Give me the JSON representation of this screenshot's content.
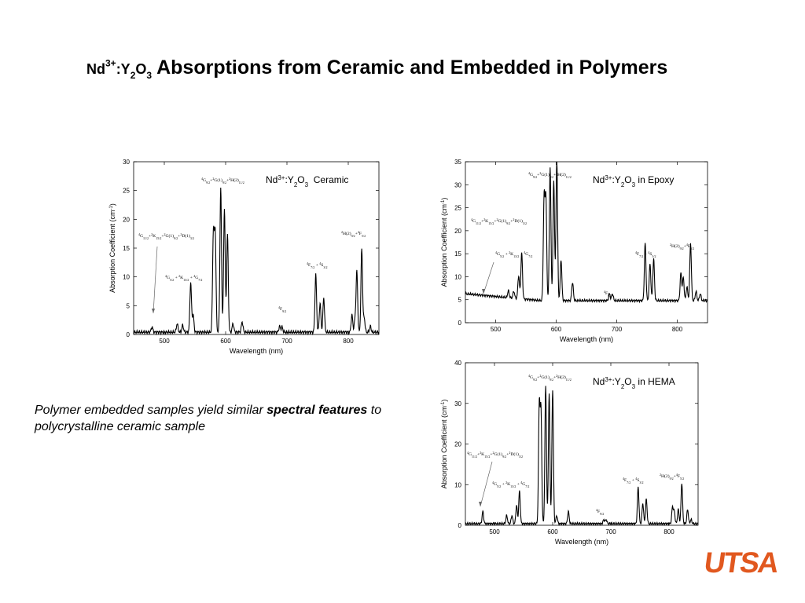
{
  "title": {
    "pre": "Nd",
    "sup": "3+",
    "mid1": ":Y",
    "sub1": "2",
    "mid2": "O",
    "sub2": "3",
    "rest": " Absorptions from Ceramic and Embedded in Polymers"
  },
  "caption": {
    "part1": "Polymer embedded samples yield similar ",
    "bold1": "spectral",
    "bold2": "features",
    "part2": " to polycrystalline ceramic sample"
  },
  "logo": "UTSA",
  "chart_data": [
    {
      "type": "line",
      "title": "Nd3+:Y2O3  Ceramic",
      "xlabel": "Wavelength (nm)",
      "ylabel": "Absorption Coefficient (cm-1)",
      "xlim": [
        450,
        850
      ],
      "ylim": [
        0,
        30
      ],
      "xticks": [
        500,
        600,
        700,
        800
      ],
      "yticks": [
        0,
        5,
        10,
        15,
        20,
        25,
        30
      ],
      "baseline": 0.4,
      "peaks": [
        [
          480,
          0.9
        ],
        [
          521,
          1.5
        ],
        [
          530,
          1.2
        ],
        [
          543,
          8.6
        ],
        [
          547,
          3
        ],
        [
          580,
          17
        ],
        [
          583,
          17
        ],
        [
          592,
          25
        ],
        [
          598,
          21.5
        ],
        [
          603,
          17
        ],
        [
          612,
          1.5
        ],
        [
          627,
          1.8
        ],
        [
          688,
          1
        ],
        [
          692,
          0.9
        ],
        [
          747,
          10
        ],
        [
          754,
          5
        ],
        [
          760,
          6
        ],
        [
          806,
          3
        ],
        [
          811,
          2
        ],
        [
          814,
          10.5
        ],
        [
          822,
          14.5
        ],
        [
          826,
          2.5
        ],
        [
          836,
          1
        ]
      ],
      "annotations": [
        "4G9/2+2G(1)9/2+2H(2)11/2",
        "4G11/2+2K15/2+2G(1)9/2+2D(1)3/2",
        "4G5/2+2K13/2+4G7/2",
        "4F9/2",
        "4F7/2+4S3/2",
        "2H(2)9/2+4F5/2"
      ]
    },
    {
      "type": "line",
      "title": "Nd3+:Y2O3 in Epoxy",
      "xlabel": "Wavelength (nm)",
      "ylabel": "Absorption Coefficient (cm-1)",
      "xlim": [
        450,
        850
      ],
      "ylim": [
        0,
        35
      ],
      "xticks": [
        500,
        600,
        700,
        800
      ],
      "yticks": [
        0,
        5,
        10,
        15,
        20,
        25,
        30,
        35
      ],
      "baseline": 4.8,
      "peaks": [
        [
          521,
          1.5
        ],
        [
          530,
          1.5
        ],
        [
          538,
          5
        ],
        [
          543,
          10
        ],
        [
          580,
          22
        ],
        [
          583,
          22
        ],
        [
          590,
          29
        ],
        [
          596,
          26
        ],
        [
          601,
          31
        ],
        [
          608,
          9
        ],
        [
          627,
          4
        ],
        [
          688,
          1.5
        ],
        [
          693,
          1.5
        ],
        [
          747,
          12.5
        ],
        [
          755,
          8
        ],
        [
          761,
          9
        ],
        [
          806,
          6
        ],
        [
          810,
          5
        ],
        [
          816,
          3
        ],
        [
          822,
          12.5
        ],
        [
          831,
          2
        ],
        [
          838,
          1.5
        ]
      ],
      "annotations": [
        "4G9/2+2G(1)9/2+2H(2)11/2",
        "4G11/2+2K15/2+2G(1)9/2+2D(1)3/2",
        "4G5/2+2K13/2+4G7/2",
        "4F9/2",
        "4F7/2+4S3/2",
        "2H(2)9/2+4F5/2"
      ]
    },
    {
      "type": "line",
      "title": "Nd3+:Y2O3 in HEMA",
      "xlabel": "Wavelength (nm)",
      "ylabel": "Absorption Coefficient (cm-1)",
      "xlim": [
        450,
        850
      ],
      "ylim": [
        0,
        40
      ],
      "xticks": [
        500,
        600,
        700,
        800
      ],
      "yticks": [
        0,
        10,
        20,
        30,
        40
      ],
      "baseline": 0.4,
      "peaks": [
        [
          480,
          3
        ],
        [
          521,
          2
        ],
        [
          530,
          2
        ],
        [
          538,
          4.5
        ],
        [
          543,
          8
        ],
        [
          577,
          29
        ],
        [
          580,
          27
        ],
        [
          588,
          34
        ],
        [
          594,
          32
        ],
        [
          600,
          33
        ],
        [
          607,
          2
        ],
        [
          627,
          3
        ],
        [
          688,
          1
        ],
        [
          692,
          1
        ],
        [
          747,
          9
        ],
        [
          755,
          5
        ],
        [
          761,
          6
        ],
        [
          806,
          4
        ],
        [
          809,
          3
        ],
        [
          816,
          3.5
        ],
        [
          822,
          10
        ],
        [
          832,
          3.5
        ],
        [
          838,
          1
        ]
      ],
      "annotations": [
        "4G9/2+2G(1)9/2+2H(2)11/2",
        "4G11/2+2K15/2+2G(1)9/2+2D(1)3/2",
        "4G5/2+2K13/2+4G7/2",
        "4F9/2",
        "4F7/2+4S3/2",
        "2H(2)9/2+4F5/2"
      ]
    }
  ]
}
